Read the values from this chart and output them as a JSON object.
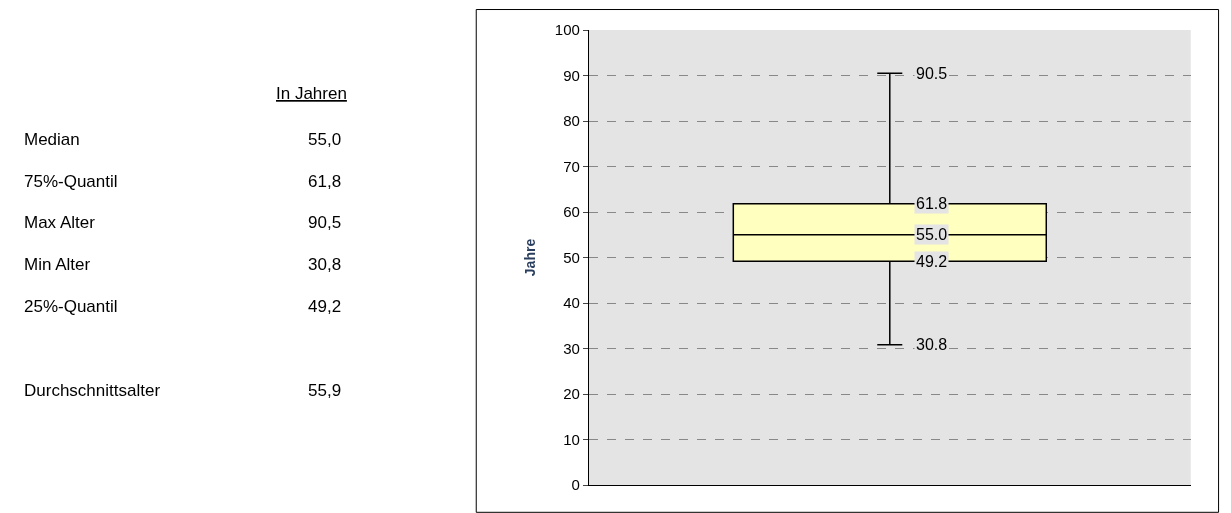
{
  "chart_data": [
    {
      "type": "other",
      "annotations": [
        "In Jahren",
        "Median",
        "55,0",
        "75%-Quantil",
        "61,8",
        "Max Alter",
        "90,5",
        "Min Alter",
        "30,8",
        "25%-Quantil",
        "49,2",
        "Durchschnittsalter",
        "55,9"
      ]
    },
    {
      "type": "box",
      "categories": [
        null
      ],
      "ylabel": "Jahre",
      "ylim": [
        0,
        100
      ],
      "yticks": [
        0,
        10,
        20,
        30,
        40,
        50,
        60,
        70,
        80,
        90,
        100
      ],
      "grid": "y",
      "tick_labels": "y",
      "color": "#ffffc0",
      "annotations": [
        {
          "text": "90.5",
          "y": 90.5
        },
        {
          "text": "61.8",
          "y": 61.8
        },
        {
          "text": "55.0",
          "y": 55.0
        },
        {
          "text": "49.2",
          "y": 49.2
        },
        {
          "text": "30.8",
          "y": 30.8
        }
      ],
      "boxes": [
        {
          "low": 30.8,
          "q1": 49.2,
          "median": 55.0,
          "q3": 61.8,
          "high": 90.5
        }
      ]
    }
  ]
}
